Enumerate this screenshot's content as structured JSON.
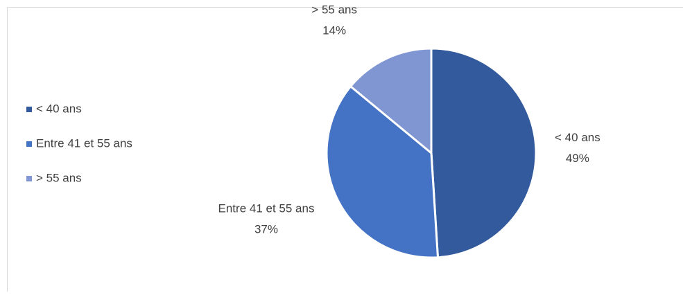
{
  "chart_data": {
    "type": "pie",
    "categories": [
      "< 40 ans",
      "Entre 41 et 55 ans",
      "> 55 ans"
    ],
    "values": [
      49,
      37,
      14
    ],
    "value_labels": [
      "49%",
      "37%",
      "14%"
    ],
    "colors": [
      "#335a9c",
      "#4472c4",
      "#7f96d2"
    ],
    "legend": "left"
  }
}
